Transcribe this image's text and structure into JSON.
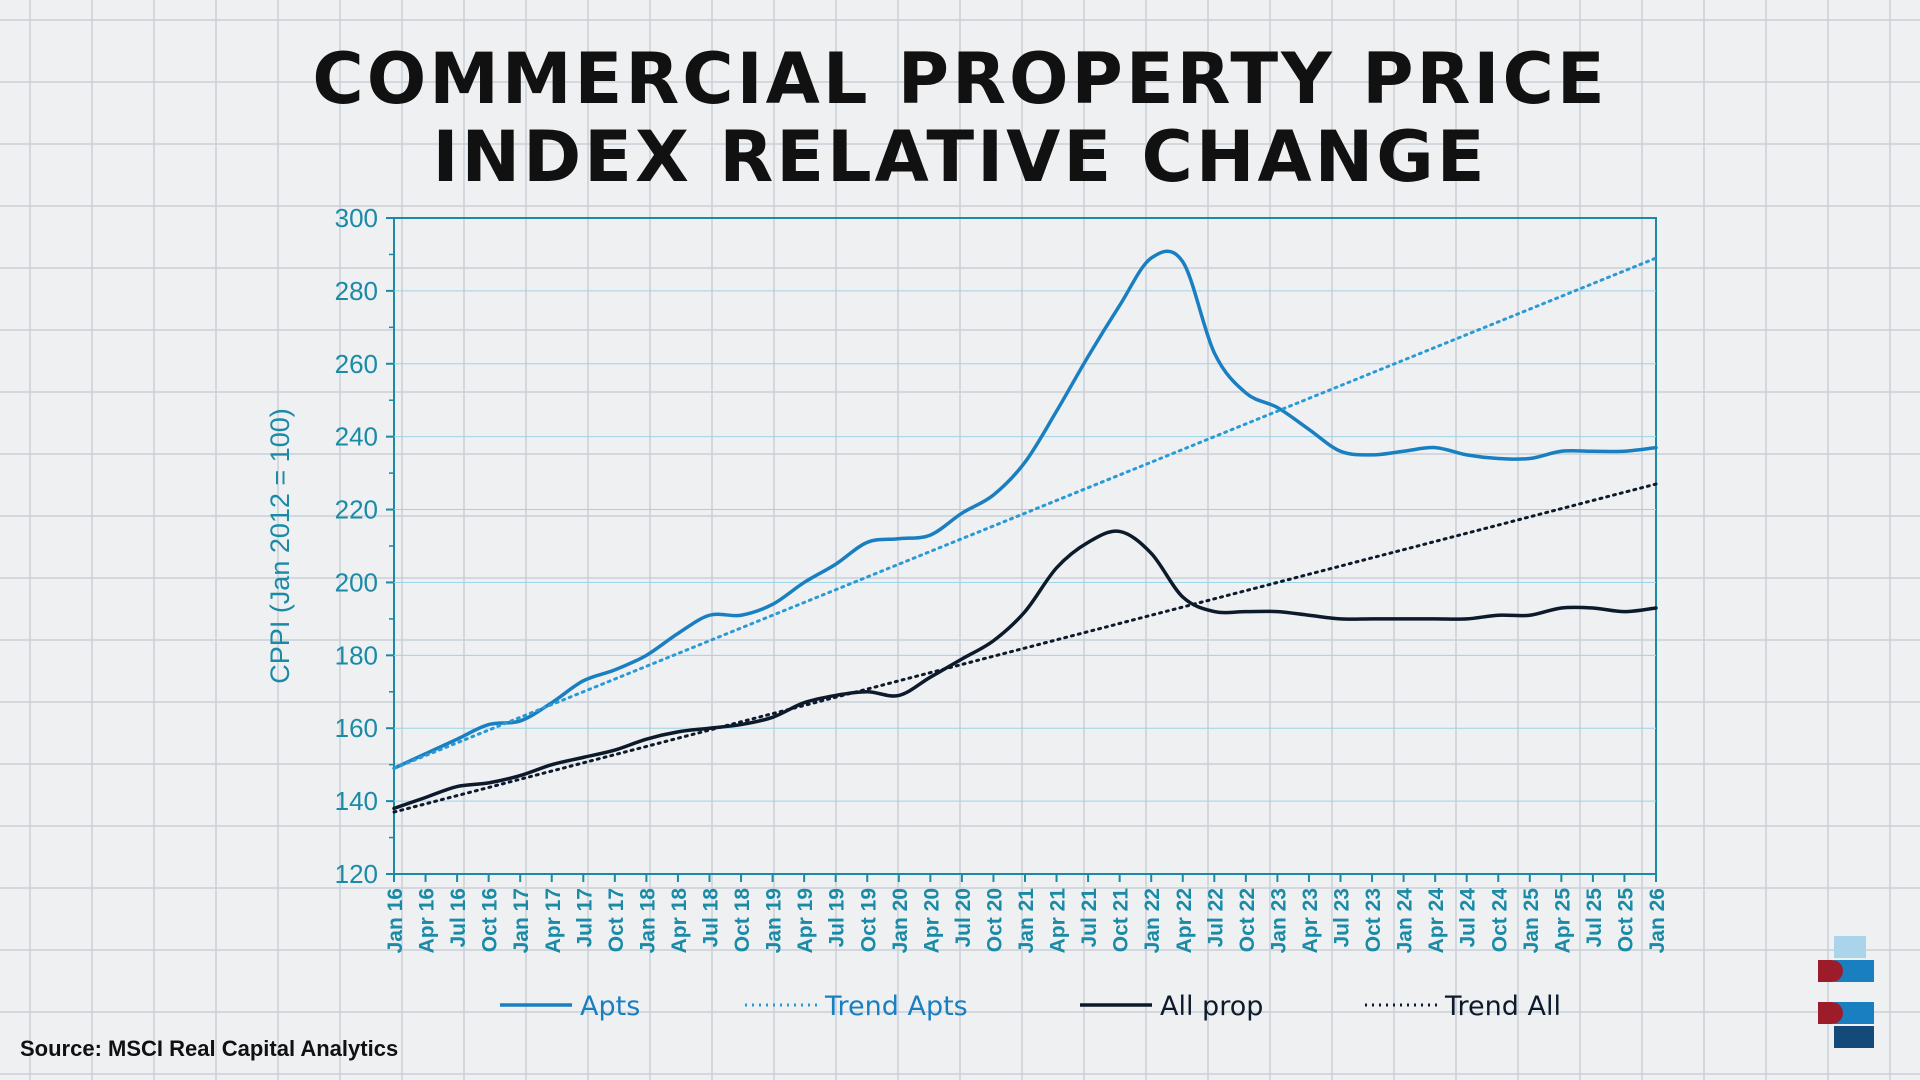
{
  "title": {
    "line1": "COMMERCIAL PROPERTY PRICE",
    "line2": "INDEX RELATIVE CHANGE"
  },
  "source": "Source: MSCI Real Capital Analytics",
  "colors": {
    "apts": "#1a7fc1",
    "trend_apts": "#2a9ad6",
    "all": "#0d1a2b",
    "axis": "#1a8aa6",
    "axis_text": "#1a8aa6"
  },
  "chart_data": {
    "type": "line",
    "title": "COMMERCIAL PROPERTY PRICE INDEX RELATIVE CHANGE",
    "ylabel": "CPPI (Jan 2012 = 100)",
    "xlabel": "",
    "ylim": [
      120,
      300
    ],
    "yticks": [
      120,
      140,
      160,
      180,
      200,
      220,
      240,
      260,
      280,
      300
    ],
    "grid": "horizontal",
    "legend_position": "bottom",
    "categories": [
      "Jan 16",
      "Apr 16",
      "Jul 16",
      "Oct 16",
      "Jan 17",
      "Apr 17",
      "Jul 17",
      "Oct 17",
      "Jan 18",
      "Apr 18",
      "Jul 18",
      "Oct 18",
      "Jan 19",
      "Apr 19",
      "Jul 19",
      "Oct 19",
      "Jan 20",
      "Apr 20",
      "Jul 20",
      "Oct 20",
      "Jan 21",
      "Apr 21",
      "Jul 21",
      "Oct 21",
      "Jan 22",
      "Apr 22",
      "Jul 22",
      "Oct 22",
      "Jan 23",
      "Apr 23",
      "Jul 23",
      "Oct 23",
      "Jan 24",
      "Apr 24",
      "Jul 24",
      "Oct 24",
      "Jan 25",
      "Apr 25",
      "Jul 25",
      "Oct 25",
      "Jan 26"
    ],
    "series": [
      {
        "name": "Apts",
        "style": "solid",
        "values": [
          149,
          153,
          157,
          161,
          162,
          167,
          173,
          176,
          180,
          186,
          191,
          191,
          194,
          200,
          205,
          211,
          212,
          213,
          219,
          224,
          233,
          247,
          262,
          276,
          289,
          288,
          263,
          252,
          248,
          242,
          236,
          235,
          236,
          237,
          235,
          234,
          234,
          236,
          236,
          236,
          237
        ]
      },
      {
        "name": "Trend Apts",
        "style": "dotted",
        "linear": [
          149,
          289
        ]
      },
      {
        "name": "All prop",
        "style": "solid",
        "values": [
          138,
          141,
          144,
          145,
          147,
          150,
          152,
          154,
          157,
          159,
          160,
          161,
          163,
          167,
          169,
          170,
          169,
          174,
          179,
          184,
          192,
          204,
          211,
          214,
          208,
          196,
          192,
          192,
          192,
          191,
          190,
          190,
          190,
          190,
          190,
          191,
          191,
          193,
          193,
          192,
          193
        ]
      },
      {
        "name": "Trend All",
        "style": "dotted",
        "linear": [
          137,
          227
        ]
      }
    ]
  },
  "legend": [
    {
      "label": "Apts",
      "style": "solid",
      "color": "#1a7fc1"
    },
    {
      "label": "Trend Apts",
      "style": "dotted",
      "color": "#2a9ad6"
    },
    {
      "label": "All prop",
      "style": "solid",
      "color": "#0d1a2b"
    },
    {
      "label": "Trend All",
      "style": "dotted",
      "color": "#0d1a2b"
    }
  ]
}
